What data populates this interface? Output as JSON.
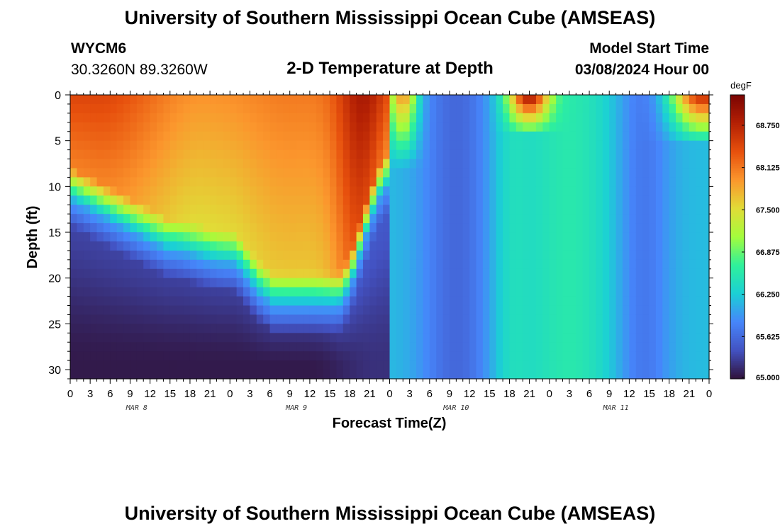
{
  "header": {
    "title": "University of Southern Mississippi Ocean Cube (AMSEAS)",
    "station_id": "WYCM6",
    "station_coords": "30.3260N  89.3260W",
    "plot_title": "2-D Temperature at Depth",
    "model_start_label": "Model Start Time",
    "model_start_value": "03/08/2024 Hour 00"
  },
  "footer": {
    "title": "University of Southern Mississippi Ocean Cube (AMSEAS)"
  },
  "chart_data": {
    "type": "heatmap",
    "title": "2-D Temperature at Depth",
    "xlabel": "Forecast Time(Z)",
    "ylabel": "Depth (ft)",
    "x_range_hours": [
      0,
      96
    ],
    "x_tick_labels": [
      "0",
      "3",
      "6",
      "9",
      "12",
      "15",
      "18",
      "21",
      "0",
      "3",
      "6",
      "9",
      "12",
      "15",
      "18",
      "21",
      "0",
      "3",
      "6",
      "9",
      "12",
      "15",
      "18",
      "21",
      "0",
      "3",
      "6",
      "9",
      "12",
      "15",
      "18",
      "21",
      "0"
    ],
    "day_labels": [
      "MAR 8",
      "MAR 9",
      "MAR 10",
      "MAR 11"
    ],
    "ylim": [
      0,
      31
    ],
    "y_ticks": [
      0,
      5,
      10,
      15,
      20,
      25,
      30
    ],
    "y_reversed": true,
    "colorbar": {
      "unit": "degF",
      "min": 65.0,
      "max": 69.2,
      "tick_values": [
        65.0,
        65.625,
        66.25,
        66.875,
        67.5,
        68.125,
        68.75
      ],
      "tick_labels": [
        "65.000",
        "65.625",
        "66.250",
        "66.875",
        "67.500",
        "68.125",
        "68.750"
      ]
    },
    "time_hours": [
      0,
      6,
      12,
      18,
      24,
      30,
      36,
      42,
      48,
      51,
      54,
      57,
      60,
      63,
      66,
      69,
      72,
      75,
      78,
      81,
      84,
      87,
      90,
      96
    ],
    "depth_ft": [
      0,
      2.5,
      5,
      7.5,
      10,
      12.5,
      15,
      17.5,
      20,
      22.5,
      25,
      27.5,
      30,
      31
    ],
    "temperature_degF": [
      [
        68.8,
        68.6,
        68.4,
        68.3,
        68.2,
        68.1
      ],
      [
        68.7,
        68.5,
        68.3,
        68.2,
        68.1,
        67.9
      ],
      [
        68.6,
        68.3,
        68.2,
        68.0,
        67.9,
        67.8
      ],
      [
        68.4,
        68.1,
        68.0,
        67.8,
        67.7,
        67.6
      ]
    ],
    "description_note": ""
  }
}
